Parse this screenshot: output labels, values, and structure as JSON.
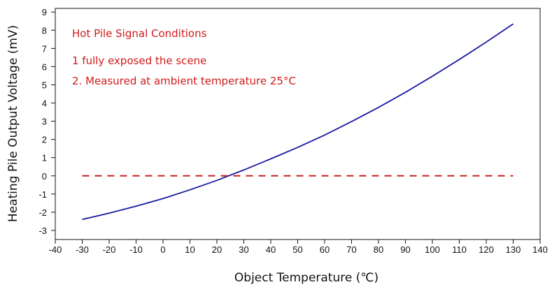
{
  "chart_data": {
    "type": "line",
    "title": "",
    "xlabel": "Object Temperature (℃)",
    "ylabel": "Heating Pile Output Voltage (mV)",
    "xlim": [
      -40,
      140
    ],
    "ylim": [
      -3.5,
      9.2
    ],
    "x_ticks": [
      -40,
      -30,
      -20,
      -10,
      0,
      10,
      20,
      30,
      40,
      50,
      60,
      70,
      80,
      90,
      100,
      110,
      120,
      130,
      140
    ],
    "y_ticks": [
      -3,
      -2,
      -1,
      0,
      1,
      2,
      3,
      4,
      5,
      6,
      7,
      8,
      9
    ],
    "grid": false,
    "legend": "none",
    "series": [
      {
        "color": "#1a1aa0",
        "style": "solid",
        "x": [
          -30,
          -20,
          -10,
          0,
          10,
          20,
          30,
          40,
          50,
          60,
          70,
          80,
          90,
          100,
          110,
          120,
          130
        ],
        "y": [
          -2.4,
          -2.05,
          -1.67,
          -1.25,
          -0.77,
          -0.25,
          0.32,
          0.93,
          1.56,
          2.24,
          2.98,
          3.76,
          4.59,
          5.47,
          6.39,
          7.35,
          8.35
        ]
      },
      {
        "color": "#cc1f1f",
        "style": "dashed",
        "x": [
          -30,
          130
        ],
        "y": [
          0,
          0
        ]
      }
    ],
    "annotations": [
      "Hot Pile Signal Conditions",
      "1 fully exposed the scene",
      "2. Measured at ambient temperature 25°C"
    ],
    "annotation_color": "#d11a1a",
    "axis_color": "#111111"
  }
}
